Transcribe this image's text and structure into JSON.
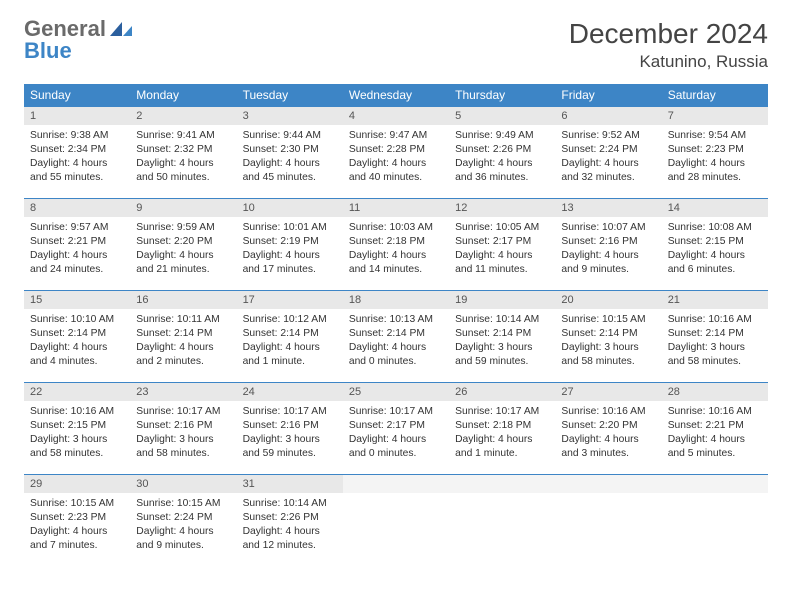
{
  "logo": {
    "word1": "General",
    "word2": "Blue"
  },
  "title": "December 2024",
  "location": "Katunino, Russia",
  "header_bg": "#3d85c6",
  "header_fg": "#ffffff",
  "daynum_bg": "#e8e8e8",
  "border_color": "#3d85c6",
  "days": [
    "Sunday",
    "Monday",
    "Tuesday",
    "Wednesday",
    "Thursday",
    "Friday",
    "Saturday"
  ],
  "weeks": [
    [
      {
        "n": "1",
        "sr": "9:38 AM",
        "ss": "2:34 PM",
        "dl": "4 hours and 55 minutes."
      },
      {
        "n": "2",
        "sr": "9:41 AM",
        "ss": "2:32 PM",
        "dl": "4 hours and 50 minutes."
      },
      {
        "n": "3",
        "sr": "9:44 AM",
        "ss": "2:30 PM",
        "dl": "4 hours and 45 minutes."
      },
      {
        "n": "4",
        "sr": "9:47 AM",
        "ss": "2:28 PM",
        "dl": "4 hours and 40 minutes."
      },
      {
        "n": "5",
        "sr": "9:49 AM",
        "ss": "2:26 PM",
        "dl": "4 hours and 36 minutes."
      },
      {
        "n": "6",
        "sr": "9:52 AM",
        "ss": "2:24 PM",
        "dl": "4 hours and 32 minutes."
      },
      {
        "n": "7",
        "sr": "9:54 AM",
        "ss": "2:23 PM",
        "dl": "4 hours and 28 minutes."
      }
    ],
    [
      {
        "n": "8",
        "sr": "9:57 AM",
        "ss": "2:21 PM",
        "dl": "4 hours and 24 minutes."
      },
      {
        "n": "9",
        "sr": "9:59 AM",
        "ss": "2:20 PM",
        "dl": "4 hours and 21 minutes."
      },
      {
        "n": "10",
        "sr": "10:01 AM",
        "ss": "2:19 PM",
        "dl": "4 hours and 17 minutes."
      },
      {
        "n": "11",
        "sr": "10:03 AM",
        "ss": "2:18 PM",
        "dl": "4 hours and 14 minutes."
      },
      {
        "n": "12",
        "sr": "10:05 AM",
        "ss": "2:17 PM",
        "dl": "4 hours and 11 minutes."
      },
      {
        "n": "13",
        "sr": "10:07 AM",
        "ss": "2:16 PM",
        "dl": "4 hours and 9 minutes."
      },
      {
        "n": "14",
        "sr": "10:08 AM",
        "ss": "2:15 PM",
        "dl": "4 hours and 6 minutes."
      }
    ],
    [
      {
        "n": "15",
        "sr": "10:10 AM",
        "ss": "2:14 PM",
        "dl": "4 hours and 4 minutes."
      },
      {
        "n": "16",
        "sr": "10:11 AM",
        "ss": "2:14 PM",
        "dl": "4 hours and 2 minutes."
      },
      {
        "n": "17",
        "sr": "10:12 AM",
        "ss": "2:14 PM",
        "dl": "4 hours and 1 minute."
      },
      {
        "n": "18",
        "sr": "10:13 AM",
        "ss": "2:14 PM",
        "dl": "4 hours and 0 minutes."
      },
      {
        "n": "19",
        "sr": "10:14 AM",
        "ss": "2:14 PM",
        "dl": "3 hours and 59 minutes."
      },
      {
        "n": "20",
        "sr": "10:15 AM",
        "ss": "2:14 PM",
        "dl": "3 hours and 58 minutes."
      },
      {
        "n": "21",
        "sr": "10:16 AM",
        "ss": "2:14 PM",
        "dl": "3 hours and 58 minutes."
      }
    ],
    [
      {
        "n": "22",
        "sr": "10:16 AM",
        "ss": "2:15 PM",
        "dl": "3 hours and 58 minutes."
      },
      {
        "n": "23",
        "sr": "10:17 AM",
        "ss": "2:16 PM",
        "dl": "3 hours and 58 minutes."
      },
      {
        "n": "24",
        "sr": "10:17 AM",
        "ss": "2:16 PM",
        "dl": "3 hours and 59 minutes."
      },
      {
        "n": "25",
        "sr": "10:17 AM",
        "ss": "2:17 PM",
        "dl": "4 hours and 0 minutes."
      },
      {
        "n": "26",
        "sr": "10:17 AM",
        "ss": "2:18 PM",
        "dl": "4 hours and 1 minute."
      },
      {
        "n": "27",
        "sr": "10:16 AM",
        "ss": "2:20 PM",
        "dl": "4 hours and 3 minutes."
      },
      {
        "n": "28",
        "sr": "10:16 AM",
        "ss": "2:21 PM",
        "dl": "4 hours and 5 minutes."
      }
    ],
    [
      {
        "n": "29",
        "sr": "10:15 AM",
        "ss": "2:23 PM",
        "dl": "4 hours and 7 minutes."
      },
      {
        "n": "30",
        "sr": "10:15 AM",
        "ss": "2:24 PM",
        "dl": "4 hours and 9 minutes."
      },
      {
        "n": "31",
        "sr": "10:14 AM",
        "ss": "2:26 PM",
        "dl": "4 hours and 12 minutes."
      },
      {
        "empty": true
      },
      {
        "empty": true
      },
      {
        "empty": true
      },
      {
        "empty": true
      }
    ]
  ],
  "labels": {
    "sunrise": "Sunrise: ",
    "sunset": "Sunset: ",
    "daylight": "Daylight: "
  }
}
